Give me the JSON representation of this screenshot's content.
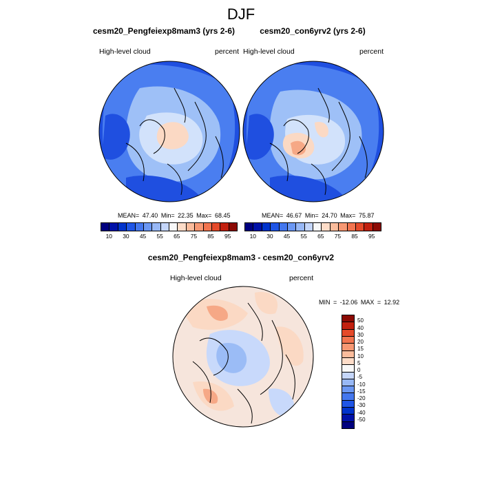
{
  "figure": {
    "title": "DJF",
    "panels": [
      {
        "title": "cesm20_Pengfeiexp8mam3 (yrs 2-6)",
        "left_label": "High-level cloud",
        "right_label": "percent",
        "mean": "47.40",
        "min": "22.35",
        "max": "68.45"
      },
      {
        "title": "cesm20_con6yrv2 (yrs 2-6)",
        "left_label": "High-level cloud",
        "right_label": "percent",
        "mean": "46.67",
        "min": "24.70",
        "max": "75.87"
      },
      {
        "title": "cesm20_Pengfeiexp8mam3 - cesm20_con6yrv2",
        "left_label": "High-level cloud",
        "right_label": "percent",
        "min": "-12.06",
        "max": "12.92"
      }
    ],
    "stats_labels": {
      "mean": "MEAN=",
      "min": "Min=",
      "max": "Max=",
      "diff_min": "MIN =",
      "diff_max": "MAX ="
    }
  },
  "colorbar_abs": {
    "colors": [
      "#00007f",
      "#0011a8",
      "#0033cc",
      "#1f55e6",
      "#4477ee",
      "#6b97f3",
      "#98b8f6",
      "#c5d6fa",
      "#f8f8f8",
      "#fddcc8",
      "#fbbc9c",
      "#f79873",
      "#f2744f",
      "#e54a2a",
      "#c2200f",
      "#8c0a04"
    ],
    "tick_labels": [
      "10",
      "30",
      "45",
      "55",
      "65",
      "75",
      "85",
      "95"
    ]
  },
  "colorbar_diff": {
    "colors": [
      "#8c0a04",
      "#c2200f",
      "#e54a2a",
      "#f2744f",
      "#f79873",
      "#fbbc9c",
      "#fddcc8",
      "#f8f8f8",
      "#c5d6fa",
      "#98b8f6",
      "#6b97f3",
      "#4477ee",
      "#1f55e6",
      "#0033cc",
      "#0011a8",
      "#00007f"
    ],
    "tick_labels": [
      "50",
      "40",
      "30",
      "20",
      "15",
      "10",
      "5",
      "0",
      "-5",
      "-10",
      "-15",
      "-20",
      "-30",
      "-40",
      "-50"
    ]
  },
  "map_colors": {
    "deep": "#1f4fe0",
    "mid": "#4a7ef0",
    "light": "#9ec0f7",
    "pale": "#d2e2fb",
    "warm1": "#fbd9c4",
    "warm2": "#f6a886",
    "warm3": "#ee7d55",
    "cold_diff": "#c8d9fb",
    "cold_diff2": "#9bbcf6",
    "neutral": "#f6e5dc",
    "coast": "#000000"
  }
}
